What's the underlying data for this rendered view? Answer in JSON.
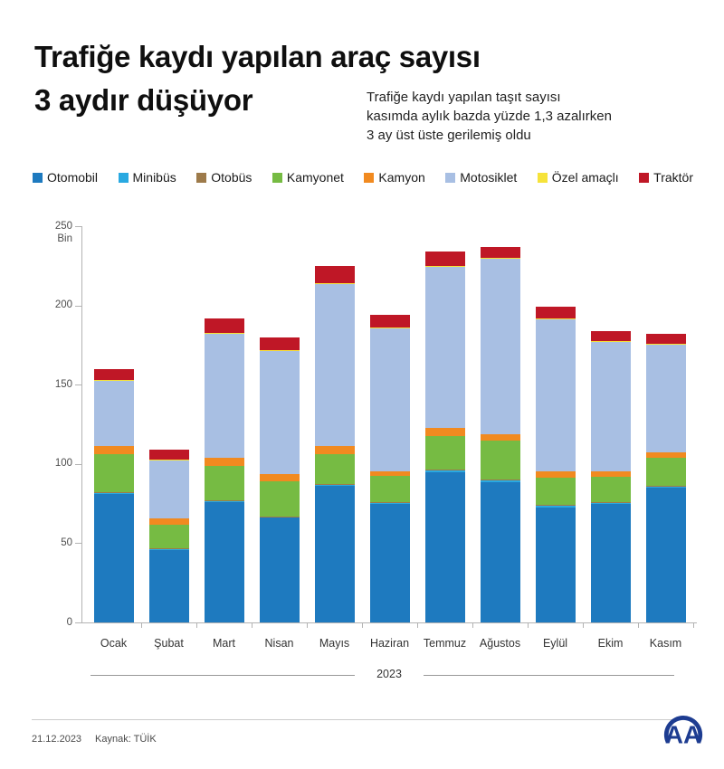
{
  "header": {
    "title_line1": "Trafiğe kaydı yapılan araç sayısı",
    "title_line2": "3 aydır düşüyor",
    "subtitle_lines": [
      "Trafiğe kaydı yapılan taşıt sayısı",
      "kasımda aylık bazda yüzde 1,3 azalırken",
      "3 ay üst üste gerilemiş oldu"
    ]
  },
  "chart_data": {
    "type": "bar",
    "stacked": true,
    "title": "Trafiğe kaydı yapılan araç sayısı 3 aydır düşüyor",
    "unit": "Bin",
    "categories": [
      "Ocak",
      "Şubat",
      "Mart",
      "Nisan",
      "Mayıs",
      "Haziran",
      "Temmuz",
      "Ağustos",
      "Eylül",
      "Ekim",
      "Kasım"
    ],
    "x_group_label": "2023",
    "y_axis": {
      "label": "Bin",
      "max": 250,
      "ticks": [
        0,
        50,
        100,
        150,
        200,
        250
      ]
    },
    "legend_position": "top",
    "grid": false,
    "series": [
      {
        "name": "Otomobil",
        "color": "#1e7abf",
        "values": [
          81,
          46,
          76,
          66,
          86,
          75,
          95,
          88.5,
          72.5,
          75,
          85
        ]
      },
      {
        "name": "Minibüs",
        "color": "#29a9e1",
        "values": [
          0.7,
          0.5,
          0.7,
          0.7,
          1,
          0.7,
          1,
          1,
          1,
          0.7,
          0.7
        ]
      },
      {
        "name": "Otobüs",
        "color": "#9d7a4a",
        "values": [
          0.3,
          0.3,
          0.3,
          0.3,
          0.4,
          0.3,
          0.5,
          0.5,
          0.5,
          0.3,
          0.3
        ]
      },
      {
        "name": "Kamyonet",
        "color": "#76bb43",
        "values": [
          24,
          15,
          22,
          22,
          19,
          16.5,
          21,
          24.5,
          17.5,
          16,
          18
        ]
      },
      {
        "name": "Kamyon",
        "color": "#f18a20",
        "values": [
          5.5,
          4,
          5,
          4.5,
          5,
          3,
          5,
          4,
          4,
          3.3,
          3.5
        ]
      },
      {
        "name": "Motosiklet",
        "color": "#a8bfe3",
        "values": [
          41,
          37,
          78,
          78,
          102,
          90,
          102,
          111,
          96,
          82,
          68
        ]
      },
      {
        "name": "Özel amaçlı",
        "color": "#f6e33a",
        "values": [
          0.5,
          0.2,
          0.5,
          0.5,
          0.6,
          0.5,
          0.5,
          0.5,
          0.5,
          0.4,
          0.5
        ]
      },
      {
        "name": "Traktör",
        "color": "#bf1726",
        "values": [
          7,
          6,
          9.5,
          8,
          11,
          8,
          9,
          7,
          7.5,
          6.3,
          6
        ]
      }
    ],
    "totals": [
      160,
      109,
      192,
      180,
      225,
      194,
      234,
      237,
      199.5,
      184,
      182
    ]
  },
  "footer": {
    "date": "21.12.2023",
    "source": "Kaynak: TÜİK",
    "logo_text": "AA",
    "logo_color": "#1d3c91"
  }
}
